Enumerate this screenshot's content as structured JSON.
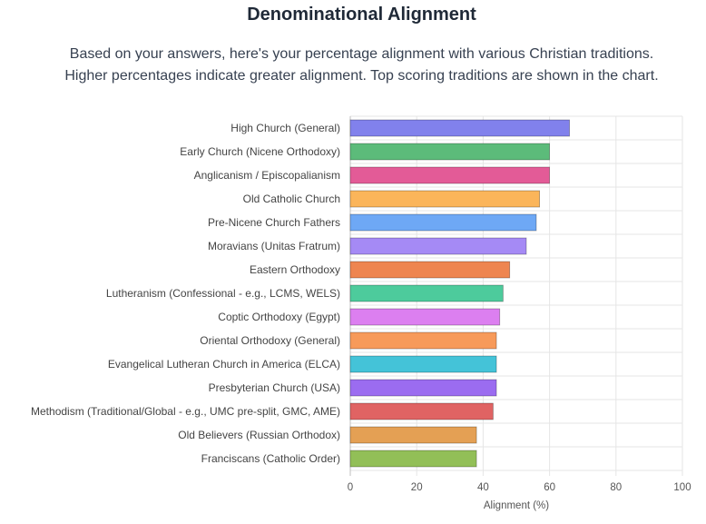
{
  "header": {
    "title": "Denominational Alignment",
    "subtitle_line1": "Based on your answers, here's your percentage alignment with various Christian traditions.",
    "subtitle_line2": "Higher percentages indicate greater alignment. Top scoring traditions are shown in the chart."
  },
  "chart_data": {
    "type": "bar",
    "orientation": "horizontal",
    "categories": [
      "High Church (General)",
      "Early Church (Nicene Orthodoxy)",
      "Anglicanism / Episcopalianism",
      "Old Catholic Church",
      "Pre-Nicene Church Fathers",
      "Moravians (Unitas Fratrum)",
      "Eastern Orthodoxy",
      "Lutheranism (Confessional - e.g., LCMS, WELS)",
      "Coptic Orthodoxy (Egypt)",
      "Oriental Orthodoxy (General)",
      "Evangelical Lutheran Church in America (ELCA)",
      "Presbyterian Church (USA)",
      "Methodism (Traditional/Global - e.g., UMC pre-split, GMC, AME)",
      "Old Believers (Russian Orthodox)",
      "Franciscans (Catholic Order)"
    ],
    "values": [
      66,
      60,
      60,
      57,
      56,
      53,
      48,
      46,
      45,
      44,
      44,
      44,
      43,
      38,
      38
    ],
    "colors": [
      "#8181ec",
      "#5cbb7a",
      "#e35b97",
      "#fbb55a",
      "#6ea8f5",
      "#a58af5",
      "#ee8550",
      "#4dcb9c",
      "#dc7ff0",
      "#f79a5a",
      "#44c3d8",
      "#9b6cf0",
      "#e06363",
      "#e4a054",
      "#92bf57"
    ],
    "xlabel": "Alignment (%)",
    "ylabel": "",
    "xlim": [
      0,
      100
    ],
    "xticks": [
      0,
      20,
      40,
      60,
      80,
      100
    ],
    "grid": true,
    "legend": "none"
  }
}
